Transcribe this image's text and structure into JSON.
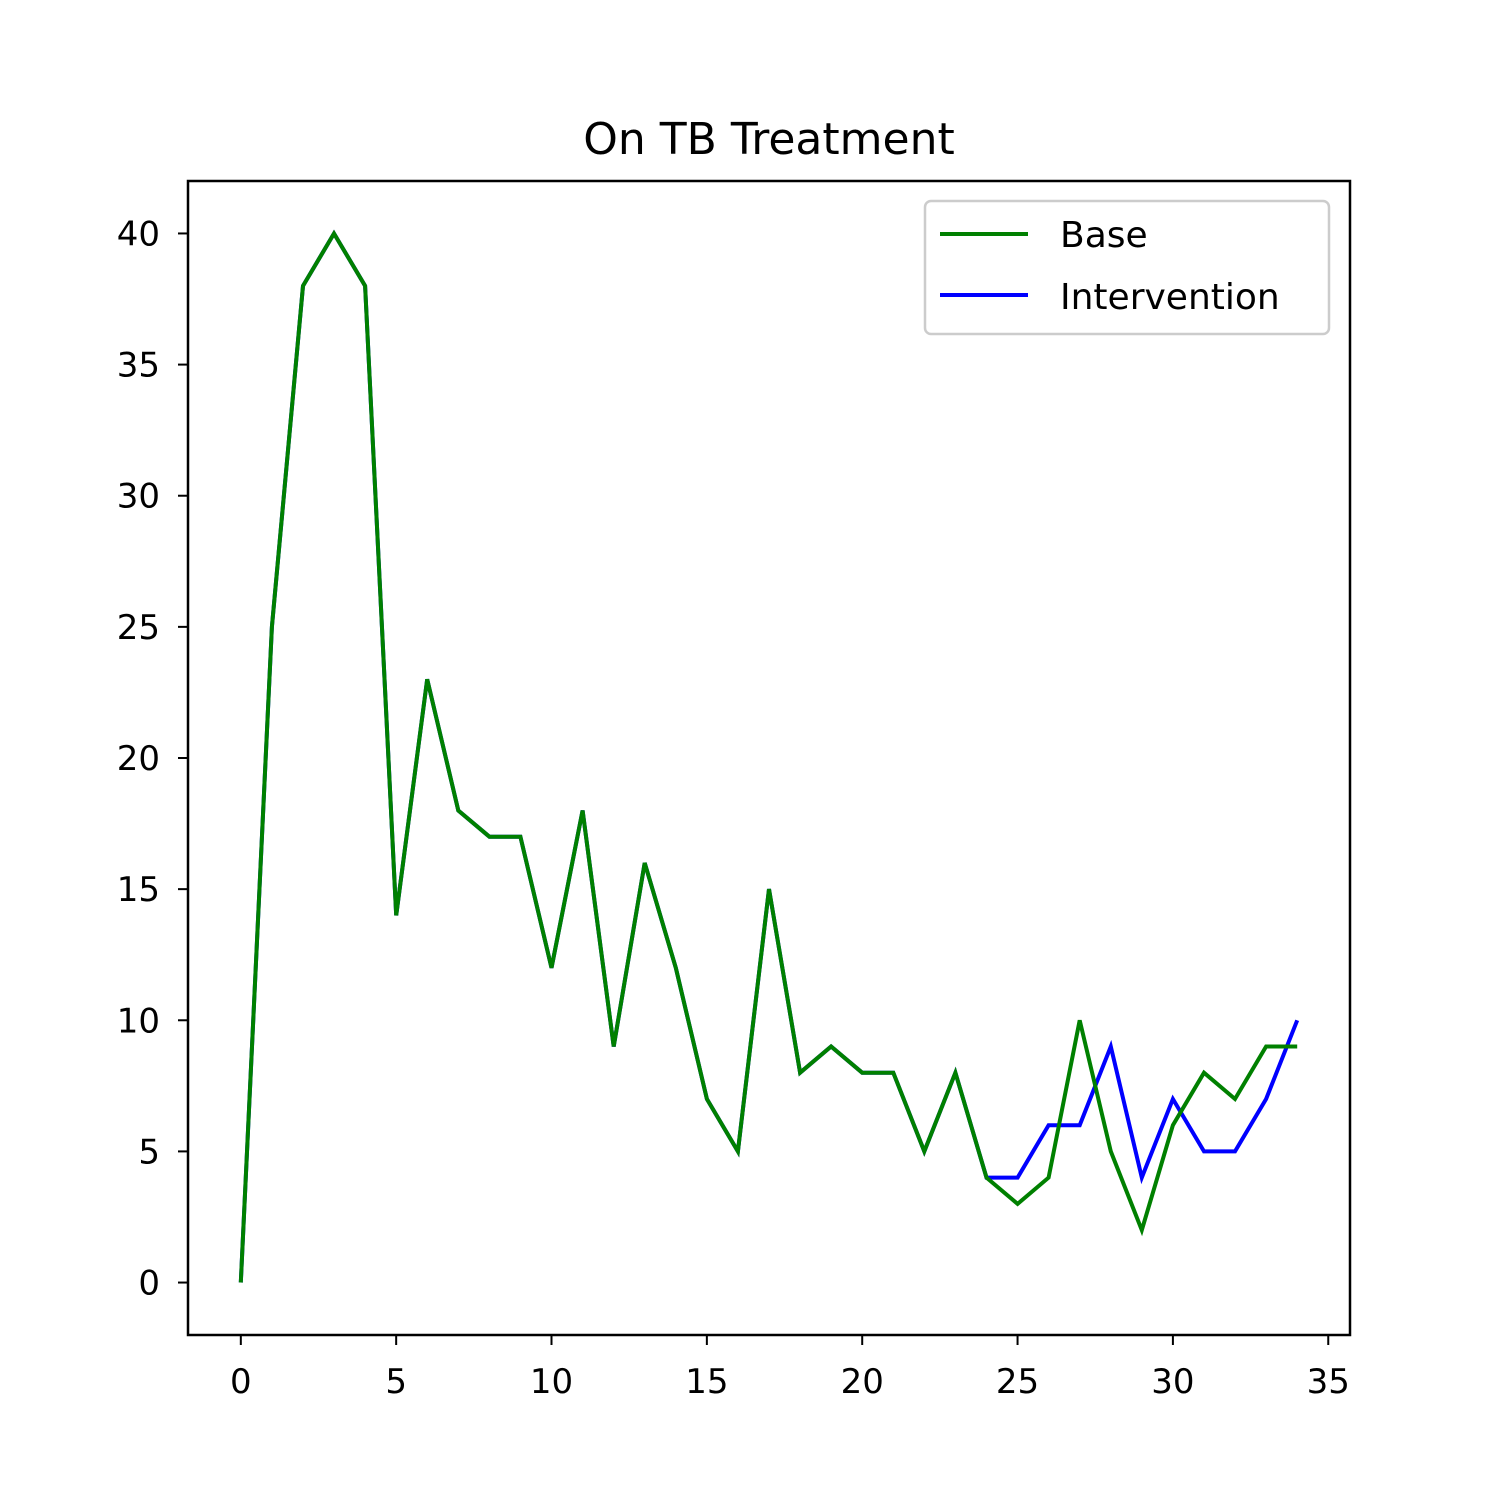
{
  "chart_data": {
    "type": "line",
    "title": "On TB Treatment",
    "xlabel": "",
    "ylabel": "",
    "xlim": [
      -1.7,
      35.7
    ],
    "ylim": [
      -2,
      42
    ],
    "xticks": [
      0,
      5,
      10,
      15,
      20,
      25,
      30,
      35
    ],
    "yticks": [
      0,
      5,
      10,
      15,
      20,
      25,
      30,
      35,
      40
    ],
    "grid": false,
    "legend_position": "top-right",
    "series": [
      {
        "name": "Intervention",
        "color": "#0000ff",
        "x": [
          0,
          1,
          2,
          3,
          4,
          5,
          6,
          7,
          8,
          9,
          10,
          11,
          12,
          13,
          14,
          15,
          16,
          17,
          18,
          19,
          20,
          21,
          22,
          23,
          24,
          25,
          26,
          27,
          28,
          29,
          30,
          31,
          32,
          33,
          34
        ],
        "values": [
          0,
          25,
          38,
          40,
          38,
          14,
          23,
          18,
          17,
          17,
          12,
          18,
          9,
          16,
          12,
          7,
          5,
          15,
          8,
          9,
          8,
          8,
          5,
          8,
          4,
          4,
          6,
          6,
          9,
          4,
          7,
          5,
          5,
          7,
          10
        ]
      },
      {
        "name": "Base",
        "color": "#008000",
        "x": [
          0,
          1,
          2,
          3,
          4,
          5,
          6,
          7,
          8,
          9,
          10,
          11,
          12,
          13,
          14,
          15,
          16,
          17,
          18,
          19,
          20,
          21,
          22,
          23,
          24,
          25,
          26,
          27,
          28,
          29,
          30,
          31,
          32,
          33,
          34
        ],
        "values": [
          0,
          25,
          38,
          40,
          38,
          14,
          23,
          18,
          17,
          17,
          12,
          18,
          9,
          16,
          12,
          7,
          5,
          15,
          8,
          9,
          8,
          8,
          5,
          8,
          4,
          3,
          4,
          10,
          5,
          2,
          6,
          8,
          7,
          9,
          9
        ]
      }
    ],
    "legend": [
      {
        "label": "Base",
        "color": "#008000"
      },
      {
        "label": "Intervention",
        "color": "#0000ff"
      }
    ]
  }
}
